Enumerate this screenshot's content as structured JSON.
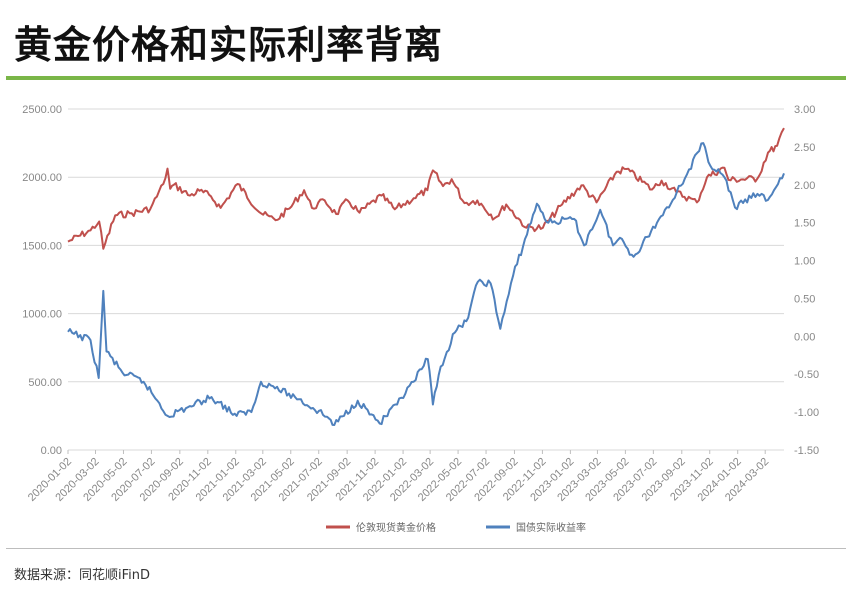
{
  "page": {
    "title": "黄金价格和实际利率背离",
    "source": "数据来源：同花顺iFinD"
  },
  "colors": {
    "accent_rule": "#7ab648",
    "gold_series": "#c0504d",
    "yield_series": "#4f81bd",
    "grid": "#d9d9d9"
  },
  "chart_data": {
    "type": "line",
    "title": "黄金价格和实际利率背离",
    "grid": true,
    "legend_position": "bottom",
    "y_left": {
      "range": [
        0,
        2500
      ],
      "ticks": [
        "0.00",
        "500.00",
        "1000.00",
        "1500.00",
        "2000.00",
        "2500.00"
      ],
      "tick_values": [
        0,
        500,
        1000,
        1500,
        2000,
        2500
      ]
    },
    "y_right": {
      "range": [
        -1.5,
        3.0
      ],
      "ticks": [
        "-1.50",
        "-1.00",
        "-0.50",
        "0.00",
        "0.50",
        "1.00",
        "1.50",
        "2.00",
        "2.50",
        "3.00"
      ],
      "tick_values": [
        -1.5,
        -1.0,
        -0.5,
        0.0,
        0.5,
        1.0,
        1.5,
        2.0,
        2.5,
        3.0
      ]
    },
    "x_range": [
      "2020-01-02",
      "2024-04-12"
    ],
    "x_ticks": [
      "2020-01-02",
      "2020-03-02",
      "2020-05-02",
      "2020-07-02",
      "2020-09-02",
      "2020-11-02",
      "2021-01-02",
      "2021-03-02",
      "2021-05-02",
      "2021-07-02",
      "2021-09-02",
      "2021-11-02",
      "2022-01-02",
      "2022-03-02",
      "2022-05-02",
      "2022-07-02",
      "2022-09-02",
      "2022-11-02",
      "2023-01-02",
      "2023-03-02",
      "2023-05-02",
      "2023-07-02",
      "2023-09-02",
      "2023-11-02",
      "2024-01-02",
      "2024-03-02"
    ],
    "series": [
      {
        "name": "伦敦现货黄金价格",
        "axis": "left",
        "color": "#c0504d",
        "points": [
          [
            "2020-01-02",
            1528
          ],
          [
            "2020-02-20",
            1610
          ],
          [
            "2020-03-10",
            1675
          ],
          [
            "2020-03-19",
            1475
          ],
          [
            "2020-04-14",
            1720
          ],
          [
            "2020-05-20",
            1735
          ],
          [
            "2020-06-30",
            1770
          ],
          [
            "2020-07-28",
            1950
          ],
          [
            "2020-08-06",
            2063
          ],
          [
            "2020-08-12",
            1915
          ],
          [
            "2020-08-20",
            1945
          ],
          [
            "2020-09-24",
            1865
          ],
          [
            "2020-10-15",
            1900
          ],
          [
            "2020-11-09",
            1860
          ],
          [
            "2020-11-30",
            1775
          ],
          [
            "2021-01-06",
            1950
          ],
          [
            "2021-02-26",
            1735
          ],
          [
            "2021-03-30",
            1685
          ],
          [
            "2021-04-29",
            1770
          ],
          [
            "2021-05-31",
            1905
          ],
          [
            "2021-06-17",
            1775
          ],
          [
            "2021-07-15",
            1830
          ],
          [
            "2021-08-09",
            1730
          ],
          [
            "2021-09-03",
            1830
          ],
          [
            "2021-09-29",
            1740
          ],
          [
            "2021-11-16",
            1865
          ],
          [
            "2021-12-15",
            1765
          ],
          [
            "2022-01-25",
            1845
          ],
          [
            "2022-02-24",
            1905
          ],
          [
            "2022-03-08",
            2050
          ],
          [
            "2022-03-30",
            1935
          ],
          [
            "2022-04-18",
            1985
          ],
          [
            "2022-05-16",
            1810
          ],
          [
            "2022-06-13",
            1830
          ],
          [
            "2022-07-21",
            1700
          ],
          [
            "2022-08-15",
            1800
          ],
          [
            "2022-09-28",
            1630
          ],
          [
            "2022-11-03",
            1630
          ],
          [
            "2022-12-15",
            1800
          ],
          [
            "2023-01-26",
            1940
          ],
          [
            "2023-02-28",
            1815
          ],
          [
            "2023-04-13",
            2040
          ],
          [
            "2023-05-04",
            2060
          ],
          [
            "2023-06-29",
            1910
          ],
          [
            "2023-07-20",
            1975
          ],
          [
            "2023-08-21",
            1890
          ],
          [
            "2023-10-05",
            1815
          ],
          [
            "2023-10-27",
            2000
          ],
          [
            "2023-12-04",
            2070
          ],
          [
            "2023-12-13",
            1980
          ],
          [
            "2024-02-14",
            1990
          ],
          [
            "2024-03-08",
            2180
          ],
          [
            "2024-03-28",
            2230
          ],
          [
            "2024-04-12",
            2360
          ]
        ]
      },
      {
        "name": "国债实际收益率",
        "axis": "right",
        "color": "#4f81bd",
        "points": [
          [
            "2020-01-02",
            0.06
          ],
          [
            "2020-02-20",
            -0.05
          ],
          [
            "2020-03-09",
            -0.55
          ],
          [
            "2020-03-19",
            0.6
          ],
          [
            "2020-03-26",
            -0.2
          ],
          [
            "2020-04-30",
            -0.48
          ],
          [
            "2020-06-15",
            -0.6
          ],
          [
            "2020-07-15",
            -0.85
          ],
          [
            "2020-08-06",
            -1.05
          ],
          [
            "2020-09-15",
            -0.95
          ],
          [
            "2020-11-10",
            -0.8
          ],
          [
            "2021-01-04",
            -1.05
          ],
          [
            "2021-01-20",
            -1.0
          ],
          [
            "2021-02-05",
            -1.0
          ],
          [
            "2021-02-26",
            -0.6
          ],
          [
            "2021-03-20",
            -0.65
          ],
          [
            "2021-05-20",
            -0.83
          ],
          [
            "2021-07-20",
            -1.06
          ],
          [
            "2021-08-05",
            -1.17
          ],
          [
            "2021-09-25",
            -0.85
          ],
          [
            "2021-10-25",
            -1.03
          ],
          [
            "2021-11-12",
            -1.15
          ],
          [
            "2021-12-20",
            -0.9
          ],
          [
            "2022-01-25",
            -0.6
          ],
          [
            "2022-02-25",
            -0.3
          ],
          [
            "2022-03-08",
            -0.9
          ],
          [
            "2022-03-25",
            -0.4
          ],
          [
            "2022-04-25",
            0.05
          ],
          [
            "2022-05-20",
            0.2
          ],
          [
            "2022-06-14",
            0.72
          ],
          [
            "2022-07-12",
            0.7
          ],
          [
            "2022-08-02",
            0.1
          ],
          [
            "2022-08-30",
            0.8
          ],
          [
            "2022-10-21",
            1.75
          ],
          [
            "2022-11-15",
            1.5
          ],
          [
            "2023-01-10",
            1.55
          ],
          [
            "2023-02-01",
            1.2
          ],
          [
            "2023-03-08",
            1.67
          ],
          [
            "2023-04-05",
            1.2
          ],
          [
            "2023-04-20",
            1.3
          ],
          [
            "2023-05-20",
            1.05
          ],
          [
            "2023-07-10",
            1.5
          ],
          [
            "2023-08-22",
            1.9
          ],
          [
            "2023-10-19",
            2.55
          ],
          [
            "2023-10-30",
            2.3
          ],
          [
            "2023-12-04",
            2.1
          ],
          [
            "2023-12-27",
            1.7
          ],
          [
            "2024-02-14",
            1.88
          ],
          [
            "2024-03-08",
            1.8
          ],
          [
            "2024-04-12",
            2.15
          ]
        ]
      }
    ]
  }
}
